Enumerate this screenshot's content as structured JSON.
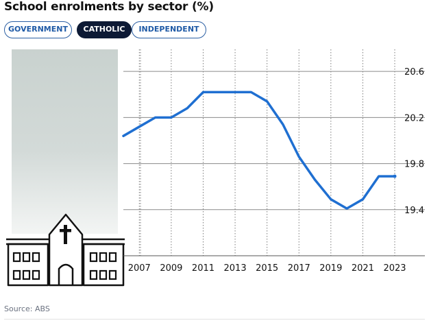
{
  "header": {
    "title": "School enrolments by sector (%)"
  },
  "tabs": [
    {
      "label": "GOVERNMENT",
      "active": false
    },
    {
      "label": "CATHOLIC",
      "active": true
    },
    {
      "label": "INDEPENDENT",
      "active": false
    }
  ],
  "footer": {
    "source": "Source: ABS"
  },
  "colors": {
    "line": "#1f6fd1",
    "active_tab": "#0d1a35",
    "tab_border": "#2b5fa3"
  },
  "icon": {
    "name": "church-school-icon"
  },
  "chart_data": {
    "type": "line",
    "x": [
      2006,
      2007,
      2008,
      2009,
      2010,
      2011,
      2012,
      2013,
      2014,
      2015,
      2016,
      2017,
      2018,
      2019,
      2020,
      2021,
      2022,
      2023
    ],
    "series": [
      {
        "values": [
          20.04,
          20.12,
          20.2,
          20.2,
          20.28,
          20.42,
          20.42,
          20.42,
          20.42,
          20.34,
          20.14,
          19.86,
          19.66,
          19.49,
          19.41,
          19.49,
          19.69,
          19.69
        ]
      }
    ],
    "xticks": [
      "2007",
      "2009",
      "2011",
      "2013",
      "2015",
      "2017",
      "2019",
      "2021",
      "2023"
    ],
    "yticks": [
      "20.6",
      "20.2",
      "19.8",
      "19.4"
    ],
    "ylim": [
      19.0,
      20.72
    ],
    "xlim": [
      2006,
      2023
    ],
    "grid": true,
    "y_axis_position": "right"
  }
}
